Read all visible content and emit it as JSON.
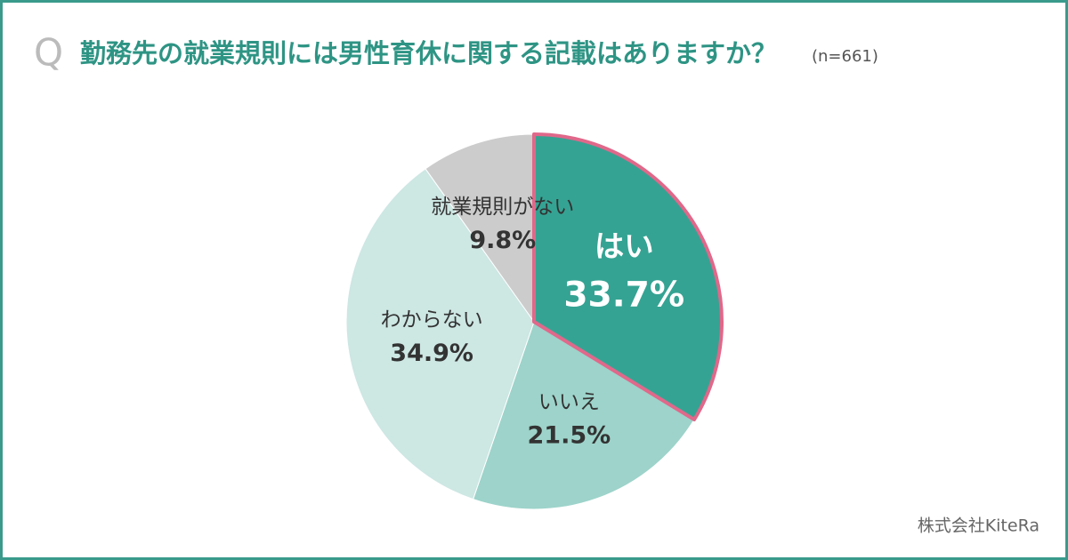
{
  "chart_data": {
    "type": "pie",
    "question_mark": "Q",
    "title": "勤務先の就業規則には男性育休に関する記載はありますか？",
    "subtitle": "(n=661)",
    "categories": [
      "はい",
      "いいえ",
      "わからない",
      "就業規則がない"
    ],
    "values": [
      33.7,
      21.5,
      34.9,
      9.8
    ],
    "value_labels": [
      "33.7%",
      "21.5%",
      "34.9%",
      "9.8%"
    ],
    "colors": [
      "#35a393",
      "#9dd3ca",
      "#cde7e3",
      "#cccccc"
    ],
    "highlight": {
      "index": 0,
      "color": "#e0688a"
    },
    "source": "株式会社KiteRa"
  }
}
